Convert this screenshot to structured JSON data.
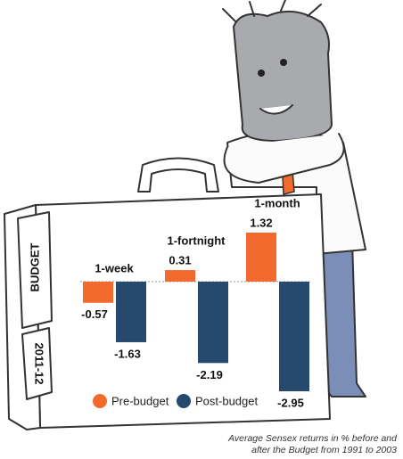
{
  "chart_data": {
    "type": "bar",
    "categories": [
      "1-week",
      "1-fortnight",
      "1-month"
    ],
    "series": [
      {
        "name": "Pre-budget",
        "color": "#f26a2e",
        "values": [
          -0.57,
          0.31,
          1.32
        ]
      },
      {
        "name": "Post-budget",
        "color": "#264a6e",
        "values": [
          -1.63,
          -2.19,
          -2.95
        ]
      }
    ],
    "caption": [
      "Average Sensex returns in % before and",
      "after the Budget from 1991 to 2003"
    ],
    "briefcase_labels": [
      "BUDGET",
      "2011-12"
    ]
  }
}
